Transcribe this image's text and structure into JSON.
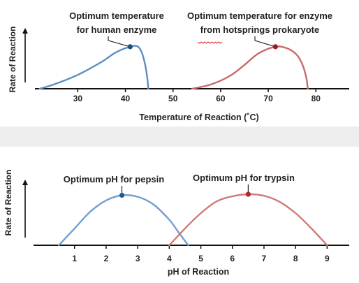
{
  "colors": {
    "human": "#5b8ec4",
    "prokaryote": "#c76b6b",
    "pepsin": "#6f9fd0",
    "trypsin": "#d27b78",
    "human_point": "#1f4f7d",
    "prokaryote_point": "#a01624",
    "pepsin_point": "#1f5c99",
    "trypsin_point": "#b0242a",
    "axis": "#111111",
    "band": "#eeeeee",
    "squiggle": "#e02020"
  },
  "chart_data": [
    {
      "type": "line",
      "xlabel": "Temperature of Reaction (˚C)",
      "ylabel": "Rate of Reaction",
      "xlim": [
        21,
        87
      ],
      "ylim": [
        0,
        1
      ],
      "x_ticks": [
        30,
        40,
        50,
        60,
        70,
        80
      ],
      "grid": false,
      "series": [
        {
          "color_key": "human",
          "x": [
            22,
            25,
            30,
            35,
            38,
            41,
            42.5,
            43.4,
            44.1,
            44.6,
            44.8
          ],
          "y": [
            0,
            0.1,
            0.32,
            0.62,
            0.84,
            0.97,
            0.98,
            0.85,
            0.58,
            0.25,
            0
          ]
        },
        {
          "color_key": "prokaryote",
          "x": [
            54,
            58,
            62,
            65,
            68,
            71.5,
            74,
            76,
            77.2,
            78,
            78.3
          ],
          "y": [
            0,
            0.1,
            0.3,
            0.55,
            0.82,
            0.97,
            0.93,
            0.78,
            0.55,
            0.25,
            0
          ]
        }
      ],
      "annotations": [
        {
          "text_lines": [
            "Optimum temperature",
            "for human enzyme"
          ],
          "x": 41,
          "y": 0.97,
          "point_color_key": "human_point"
        },
        {
          "text_lines": [
            "Optimum temperature for enzyme",
            "from hotsprings prokaryote"
          ],
          "x": 71.5,
          "y": 0.97,
          "point_color_key": "prokaryote_point"
        }
      ]
    },
    {
      "type": "line",
      "xlabel": "pH of Reaction",
      "ylabel": "Rate of Reaction",
      "xlim": [
        -0.3,
        9.7
      ],
      "ylim": [
        0,
        1
      ],
      "x_ticks": [
        1,
        2,
        3,
        4,
        5,
        6,
        7,
        8,
        9
      ],
      "grid": false,
      "series": [
        {
          "color_key": "pepsin",
          "x": [
            0.5,
            1.0,
            1.5,
            2.0,
            2.5,
            3.0,
            3.5,
            4.0,
            4.3,
            4.6
          ],
          "y": [
            0,
            0.33,
            0.66,
            0.88,
            0.98,
            0.95,
            0.8,
            0.5,
            0.25,
            0
          ]
        },
        {
          "color_key": "trypsin",
          "x": [
            4.0,
            4.5,
            5.0,
            5.5,
            6.0,
            6.5,
            7.0,
            7.5,
            8.0,
            8.5,
            9.0
          ],
          "y": [
            0,
            0.33,
            0.63,
            0.86,
            0.96,
            1.0,
            0.97,
            0.85,
            0.63,
            0.33,
            0
          ]
        }
      ],
      "annotations": [
        {
          "text_lines": [
            "Optimum pH for pepsin"
          ],
          "x": 2.5,
          "y": 0.98,
          "point_color_key": "pepsin_point"
        },
        {
          "text_lines": [
            "Optimum pH for trypsin"
          ],
          "x": 6.5,
          "y": 1.0,
          "point_color_key": "trypsin_point"
        }
      ]
    }
  ]
}
